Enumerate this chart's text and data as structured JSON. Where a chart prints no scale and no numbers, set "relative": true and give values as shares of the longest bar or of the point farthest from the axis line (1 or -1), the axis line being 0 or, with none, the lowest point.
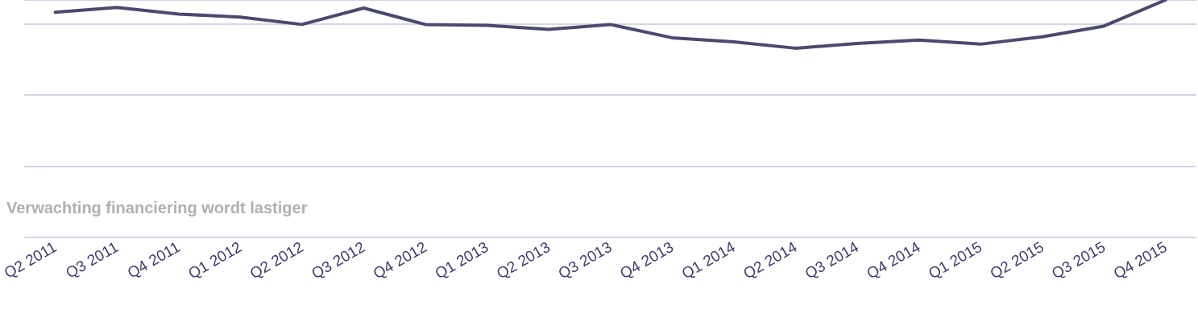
{
  "chart_data": {
    "type": "line",
    "relative": true,
    "grid": "y",
    "marker": "none",
    "line_style": "solid",
    "categories": [
      "Q2 2011",
      "Q3 2011",
      "Q4 2011",
      "Q1 2012",
      "Q2 2012",
      "Q3 2012",
      "Q4 2012",
      "Q1 2013",
      "Q2 2013",
      "Q3 2013",
      "Q4 2013",
      "Q1 2014",
      "Q2 2014",
      "Q3 2014",
      "Q4 2014",
      "Q1 2015",
      "Q2 2015",
      "Q3 2015",
      "Q4 2015"
    ],
    "series": [
      {
        "color": "#4a4a6e",
        "values": [
          0.948,
          0.969,
          0.941,
          0.928,
          0.897,
          0.966,
          0.897,
          0.893,
          0.876,
          0.897,
          0.841,
          0.824,
          0.797,
          0.817,
          0.831,
          0.814,
          0.845,
          0.89,
          1.0
        ]
      }
    ],
    "annotations": [
      "Verwachting financiering wordt lastiger"
    ]
  }
}
